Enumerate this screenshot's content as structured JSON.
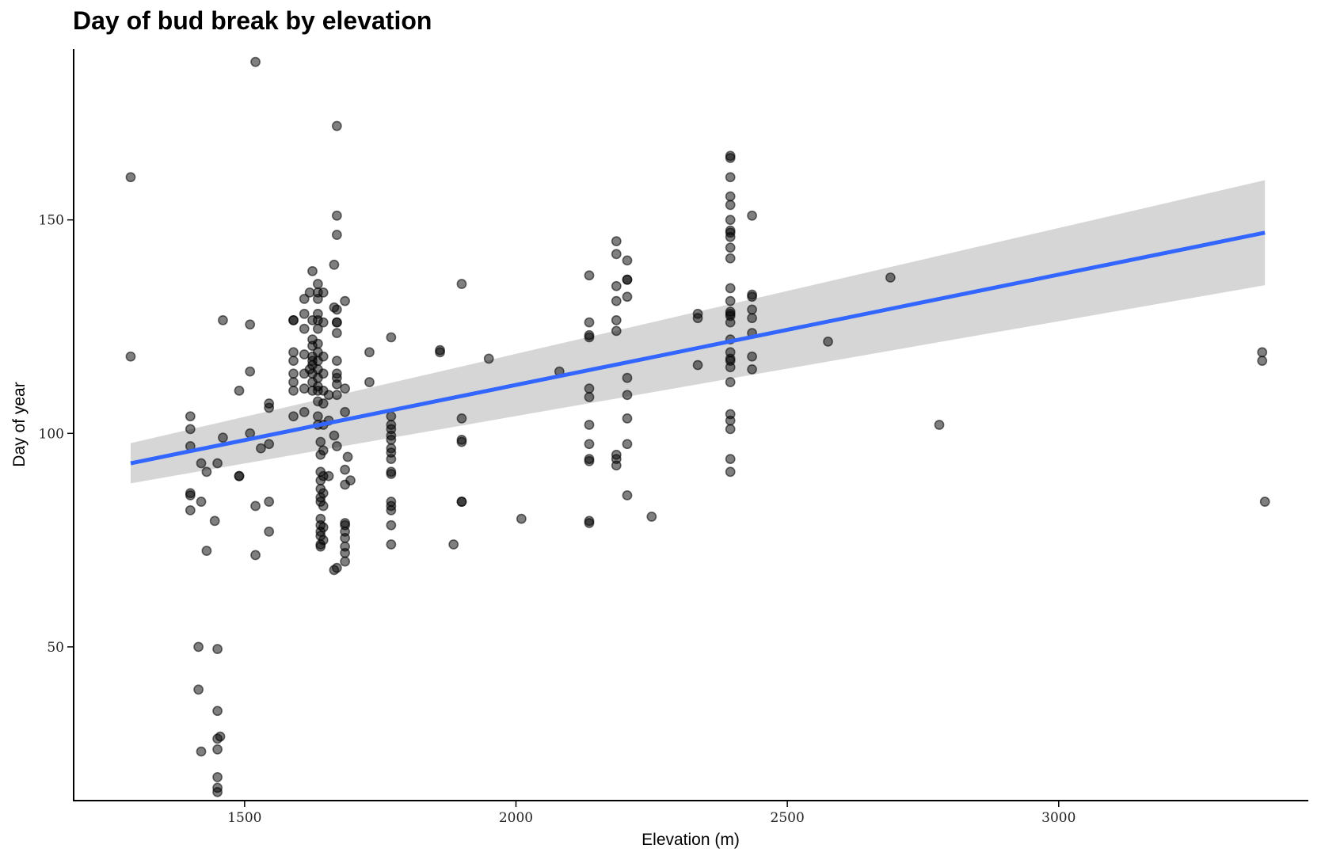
{
  "chart_data": {
    "type": "scatter",
    "title": "Day of bud break by elevation",
    "xlabel": "Elevation (m)",
    "ylabel": "Day of year",
    "xlim": [
      1185,
      3460
    ],
    "ylim": [
      14,
      190
    ],
    "x_ticks": [
      1500,
      2000,
      2500,
      3000
    ],
    "y_ticks": [
      50,
      100,
      150
    ],
    "grid": false,
    "legend": "none",
    "point_color": "#000000",
    "point_opacity": 0.5,
    "smooth": {
      "method": "linear",
      "color": "#3366ff",
      "band_color": "#d6d6d6",
      "x": [
        1290,
        3380
      ],
      "y": [
        93,
        147
      ],
      "lower": [
        88.3,
        134.7
      ],
      "upper": [
        97.7,
        159.3
      ]
    },
    "series": [
      {
        "points": [
          [
            1290,
            160
          ],
          [
            1290,
            118
          ],
          [
            1400,
            104
          ],
          [
            1400,
            101
          ],
          [
            1400,
            97
          ],
          [
            1400,
            86
          ],
          [
            1400,
            85.5
          ],
          [
            1400,
            82
          ],
          [
            1420,
            93
          ],
          [
            1420,
            84
          ],
          [
            1430,
            91
          ],
          [
            1430,
            72.5
          ],
          [
            1445,
            79.5
          ],
          [
            1450,
            93
          ],
          [
            1460,
            126.5
          ],
          [
            1460,
            99
          ],
          [
            1415,
            50
          ],
          [
            1450,
            49.5
          ],
          [
            1415,
            40
          ],
          [
            1450,
            35
          ],
          [
            1450,
            28.5
          ],
          [
            1455,
            29
          ],
          [
            1420,
            25.5
          ],
          [
            1450,
            26
          ],
          [
            1450,
            19.5
          ],
          [
            1450,
            17
          ],
          [
            1450,
            16
          ],
          [
            1490,
            110
          ],
          [
            1490,
            90
          ],
          [
            1490,
            90
          ],
          [
            1510,
            125.5
          ],
          [
            1510,
            114.5
          ],
          [
            1510,
            100
          ],
          [
            1520,
            187
          ],
          [
            1520,
            83
          ],
          [
            1520,
            71.5
          ],
          [
            1530,
            96.5
          ],
          [
            1545,
            97.5
          ],
          [
            1545,
            84
          ],
          [
            1545,
            77
          ],
          [
            1545,
            107
          ],
          [
            1545,
            106
          ],
          [
            1590,
            126.5
          ],
          [
            1590,
            126.5
          ],
          [
            1590,
            119
          ],
          [
            1590,
            117
          ],
          [
            1590,
            114
          ],
          [
            1590,
            112
          ],
          [
            1590,
            110
          ],
          [
            1590,
            104
          ],
          [
            1610,
            131.5
          ],
          [
            1610,
            128
          ],
          [
            1610,
            124.5
          ],
          [
            1610,
            118.5
          ],
          [
            1610,
            114
          ],
          [
            1610,
            110.5
          ],
          [
            1610,
            105
          ],
          [
            1620,
            133
          ],
          [
            1620,
            115
          ],
          [
            1625,
            138
          ],
          [
            1625,
            126.5
          ],
          [
            1625,
            122
          ],
          [
            1625,
            120.5
          ],
          [
            1625,
            118
          ],
          [
            1625,
            117
          ],
          [
            1625,
            116
          ],
          [
            1625,
            114
          ],
          [
            1625,
            112
          ],
          [
            1625,
            110
          ],
          [
            1635,
            135
          ],
          [
            1635,
            133
          ],
          [
            1635,
            131.5
          ],
          [
            1635,
            128
          ],
          [
            1635,
            126.5
          ],
          [
            1635,
            124.5
          ],
          [
            1635,
            121
          ],
          [
            1635,
            119
          ],
          [
            1635,
            117
          ],
          [
            1635,
            115
          ],
          [
            1635,
            113
          ],
          [
            1635,
            111
          ],
          [
            1635,
            110
          ],
          [
            1635,
            107.5
          ],
          [
            1635,
            104
          ],
          [
            1635,
            102
          ],
          [
            1640,
            98
          ],
          [
            1640,
            95
          ],
          [
            1640,
            91
          ],
          [
            1640,
            89
          ],
          [
            1640,
            87
          ],
          [
            1640,
            85
          ],
          [
            1640,
            84
          ],
          [
            1640,
            80
          ],
          [
            1640,
            78.5
          ],
          [
            1640,
            77
          ],
          [
            1640,
            76
          ],
          [
            1640,
            74
          ],
          [
            1640,
            73.5
          ],
          [
            1645,
            133
          ],
          [
            1645,
            126
          ],
          [
            1645,
            118
          ],
          [
            1645,
            114
          ],
          [
            1645,
            110
          ],
          [
            1645,
            107
          ],
          [
            1645,
            102
          ],
          [
            1645,
            96
          ],
          [
            1645,
            90
          ],
          [
            1645,
            86
          ],
          [
            1645,
            83
          ],
          [
            1645,
            78
          ],
          [
            1645,
            75
          ],
          [
            1655,
            109
          ],
          [
            1655,
            103
          ],
          [
            1655,
            90
          ],
          [
            1665,
            139.5
          ],
          [
            1665,
            129.5
          ],
          [
            1665,
            99.5
          ],
          [
            1665,
            68
          ],
          [
            1670,
            68.5
          ],
          [
            1670,
            172
          ],
          [
            1670,
            151
          ],
          [
            1670,
            146.5
          ],
          [
            1670,
            129
          ],
          [
            1670,
            126
          ],
          [
            1670,
            126
          ],
          [
            1670,
            123.5
          ],
          [
            1670,
            117
          ],
          [
            1670,
            114
          ],
          [
            1670,
            113
          ],
          [
            1670,
            111.5
          ],
          [
            1670,
            109
          ],
          [
            1670,
            97
          ],
          [
            1685,
            131
          ],
          [
            1685,
            110.5
          ],
          [
            1685,
            105
          ],
          [
            1685,
            91.5
          ],
          [
            1685,
            88
          ],
          [
            1685,
            79
          ],
          [
            1685,
            78.5
          ],
          [
            1685,
            77
          ],
          [
            1685,
            75.5
          ],
          [
            1685,
            73.5
          ],
          [
            1685,
            72
          ],
          [
            1685,
            70
          ],
          [
            1690,
            94.5
          ],
          [
            1695,
            89
          ],
          [
            1730,
            119
          ],
          [
            1730,
            112
          ],
          [
            1770,
            122.5
          ],
          [
            1770,
            104
          ],
          [
            1770,
            102
          ],
          [
            1770,
            101
          ],
          [
            1770,
            99.5
          ],
          [
            1770,
            98.5
          ],
          [
            1770,
            96.5
          ],
          [
            1770,
            95.5
          ],
          [
            1770,
            94
          ],
          [
            1770,
            91
          ],
          [
            1770,
            90.5
          ],
          [
            1770,
            84
          ],
          [
            1770,
            83
          ],
          [
            1770,
            82
          ],
          [
            1770,
            78.5
          ],
          [
            1770,
            74
          ],
          [
            1860,
            119.5
          ],
          [
            1860,
            119
          ],
          [
            1885,
            74
          ],
          [
            1900,
            135
          ],
          [
            1900,
            103.5
          ],
          [
            1900,
            98.5
          ],
          [
            1900,
            98
          ],
          [
            1900,
            84
          ],
          [
            1900,
            84
          ],
          [
            1950,
            117.5
          ],
          [
            2010,
            80
          ],
          [
            2080,
            114.5
          ],
          [
            2135,
            137
          ],
          [
            2135,
            126
          ],
          [
            2135,
            123
          ],
          [
            2135,
            122.5
          ],
          [
            2135,
            110.5
          ],
          [
            2135,
            108.5
          ],
          [
            2135,
            102
          ],
          [
            2135,
            97.5
          ],
          [
            2135,
            94
          ],
          [
            2135,
            93.5
          ],
          [
            2135,
            79.5
          ],
          [
            2135,
            79
          ],
          [
            2185,
            145
          ],
          [
            2185,
            142
          ],
          [
            2185,
            134.5
          ],
          [
            2185,
            131
          ],
          [
            2185,
            126.5
          ],
          [
            2185,
            124
          ],
          [
            2185,
            95
          ],
          [
            2185,
            94
          ],
          [
            2185,
            92.5
          ],
          [
            2205,
            140.5
          ],
          [
            2205,
            136
          ],
          [
            2205,
            136
          ],
          [
            2205,
            132
          ],
          [
            2205,
            113
          ],
          [
            2205,
            109
          ],
          [
            2205,
            103.5
          ],
          [
            2205,
            97.5
          ],
          [
            2205,
            85.5
          ],
          [
            2250,
            80.5
          ],
          [
            2335,
            128
          ],
          [
            2335,
            127
          ],
          [
            2335,
            116
          ],
          [
            2395,
            165
          ],
          [
            2395,
            164.5
          ],
          [
            2395,
            160
          ],
          [
            2395,
            155.5
          ],
          [
            2395,
            153.5
          ],
          [
            2395,
            150
          ],
          [
            2395,
            147.5
          ],
          [
            2395,
            147
          ],
          [
            2395,
            146
          ],
          [
            2395,
            143.5
          ],
          [
            2395,
            141
          ],
          [
            2395,
            134
          ],
          [
            2395,
            131
          ],
          [
            2395,
            128.5
          ],
          [
            2395,
            128
          ],
          [
            2395,
            127.5
          ],
          [
            2395,
            126
          ],
          [
            2395,
            122
          ],
          [
            2395,
            119
          ],
          [
            2395,
            117.5
          ],
          [
            2395,
            117
          ],
          [
            2395,
            115.5
          ],
          [
            2395,
            112
          ],
          [
            2395,
            104.5
          ],
          [
            2395,
            103
          ],
          [
            2395,
            101
          ],
          [
            2395,
            94
          ],
          [
            2395,
            91
          ],
          [
            2435,
            151
          ],
          [
            2435,
            132.5
          ],
          [
            2435,
            132
          ],
          [
            2435,
            129
          ],
          [
            2435,
            127
          ],
          [
            2435,
            123.5
          ],
          [
            2435,
            118
          ],
          [
            2435,
            115
          ],
          [
            2575,
            121.5
          ],
          [
            2690,
            136.5
          ],
          [
            2780,
            102
          ],
          [
            3375,
            119
          ],
          [
            3375,
            117
          ],
          [
            3380,
            84
          ]
        ]
      }
    ]
  }
}
